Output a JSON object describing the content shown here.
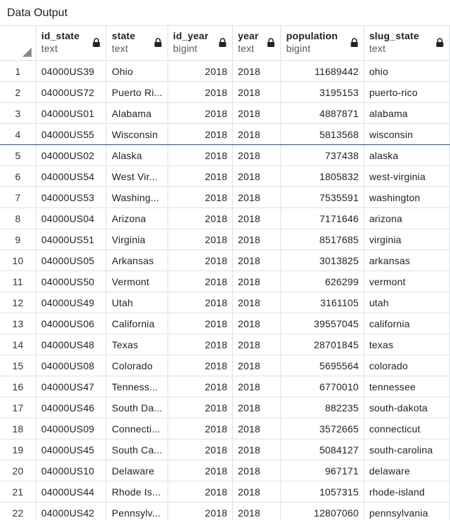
{
  "panel": {
    "title": "Data Output"
  },
  "columns": [
    {
      "name": "id_state",
      "type": "text",
      "icon": "lock-icon"
    },
    {
      "name": "state",
      "type": "text",
      "icon": "lock-icon"
    },
    {
      "name": "id_year",
      "type": "bigint",
      "icon": "lock-icon"
    },
    {
      "name": "year",
      "type": "text",
      "icon": "lock-icon"
    },
    {
      "name": "population",
      "type": "bigint",
      "icon": "lock-icon"
    },
    {
      "name": "slug_state",
      "type": "text",
      "icon": "lock-icon"
    }
  ],
  "selected_row": 4,
  "rows": [
    {
      "n": "1",
      "id_state": "04000US39",
      "state": "Ohio",
      "id_year": "2018",
      "year": "2018",
      "population": "11689442",
      "slug_state": "ohio"
    },
    {
      "n": "2",
      "id_state": "04000US72",
      "state": "Puerto Ri...",
      "id_year": "2018",
      "year": "2018",
      "population": "3195153",
      "slug_state": "puerto-rico"
    },
    {
      "n": "3",
      "id_state": "04000US01",
      "state": "Alabama",
      "id_year": "2018",
      "year": "2018",
      "population": "4887871",
      "slug_state": "alabama"
    },
    {
      "n": "4",
      "id_state": "04000US55",
      "state": "Wisconsin",
      "id_year": "2018",
      "year": "2018",
      "population": "5813568",
      "slug_state": "wisconsin"
    },
    {
      "n": "5",
      "id_state": "04000US02",
      "state": "Alaska",
      "id_year": "2018",
      "year": "2018",
      "population": "737438",
      "slug_state": "alaska"
    },
    {
      "n": "6",
      "id_state": "04000US54",
      "state": "West Vir...",
      "id_year": "2018",
      "year": "2018",
      "population": "1805832",
      "slug_state": "west-virginia"
    },
    {
      "n": "7",
      "id_state": "04000US53",
      "state": "Washing...",
      "id_year": "2018",
      "year": "2018",
      "population": "7535591",
      "slug_state": "washington"
    },
    {
      "n": "8",
      "id_state": "04000US04",
      "state": "Arizona",
      "id_year": "2018",
      "year": "2018",
      "population": "7171646",
      "slug_state": "arizona"
    },
    {
      "n": "9",
      "id_state": "04000US51",
      "state": "Virginia",
      "id_year": "2018",
      "year": "2018",
      "population": "8517685",
      "slug_state": "virginia"
    },
    {
      "n": "10",
      "id_state": "04000US05",
      "state": "Arkansas",
      "id_year": "2018",
      "year": "2018",
      "population": "3013825",
      "slug_state": "arkansas"
    },
    {
      "n": "11",
      "id_state": "04000US50",
      "state": "Vermont",
      "id_year": "2018",
      "year": "2018",
      "population": "626299",
      "slug_state": "vermont"
    },
    {
      "n": "12",
      "id_state": "04000US49",
      "state": "Utah",
      "id_year": "2018",
      "year": "2018",
      "population": "3161105",
      "slug_state": "utah"
    },
    {
      "n": "13",
      "id_state": "04000US06",
      "state": "California",
      "id_year": "2018",
      "year": "2018",
      "population": "39557045",
      "slug_state": "california"
    },
    {
      "n": "14",
      "id_state": "04000US48",
      "state": "Texas",
      "id_year": "2018",
      "year": "2018",
      "population": "28701845",
      "slug_state": "texas"
    },
    {
      "n": "15",
      "id_state": "04000US08",
      "state": "Colorado",
      "id_year": "2018",
      "year": "2018",
      "population": "5695564",
      "slug_state": "colorado"
    },
    {
      "n": "16",
      "id_state": "04000US47",
      "state": "Tenness...",
      "id_year": "2018",
      "year": "2018",
      "population": "6770010",
      "slug_state": "tennessee"
    },
    {
      "n": "17",
      "id_state": "04000US46",
      "state": "South Da...",
      "id_year": "2018",
      "year": "2018",
      "population": "882235",
      "slug_state": "south-dakota"
    },
    {
      "n": "18",
      "id_state": "04000US09",
      "state": "Connecti...",
      "id_year": "2018",
      "year": "2018",
      "population": "3572665",
      "slug_state": "connecticut"
    },
    {
      "n": "19",
      "id_state": "04000US45",
      "state": "South Ca...",
      "id_year": "2018",
      "year": "2018",
      "population": "5084127",
      "slug_state": "south-carolina"
    },
    {
      "n": "20",
      "id_state": "04000US10",
      "state": "Delaware",
      "id_year": "2018",
      "year": "2018",
      "population": "967171",
      "slug_state": "delaware"
    },
    {
      "n": "21",
      "id_state": "04000US44",
      "state": "Rhode Is...",
      "id_year": "2018",
      "year": "2018",
      "population": "1057315",
      "slug_state": "rhode-island"
    },
    {
      "n": "22",
      "id_state": "04000US42",
      "state": "Pennsylv...",
      "id_year": "2018",
      "year": "2018",
      "population": "12807060",
      "slug_state": "pennsylvania"
    }
  ]
}
